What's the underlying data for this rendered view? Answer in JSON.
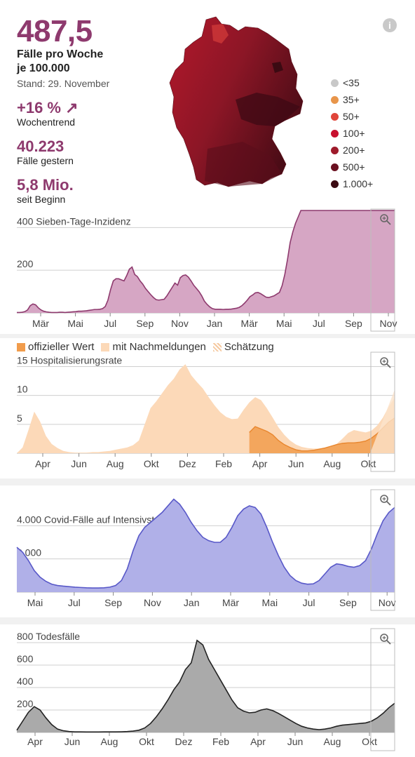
{
  "header": {
    "incidence": "487,5",
    "incidence_label_1": "Fälle pro Woche",
    "incidence_label_2": "je 100.000",
    "stand": "Stand: 29. November",
    "trend_value": "+16 %",
    "trend_arrow": "↗",
    "trend_label": "Wochentrend",
    "cases_yesterday": "40.223",
    "cases_yesterday_label": "Fälle gestern",
    "total": "5,8 Mio.",
    "total_label": "seit Beginn",
    "info_icon": "i"
  },
  "map_legend": [
    {
      "label": "<35",
      "color": "#c8c8c8"
    },
    {
      "label": "35+",
      "color": "#e8954a"
    },
    {
      "label": "50+",
      "color": "#e0453a"
    },
    {
      "label": "100+",
      "color": "#c8102e"
    },
    {
      "label": "200+",
      "color": "#9e1b2b"
    },
    {
      "label": "500+",
      "color": "#6a1020"
    },
    {
      "label": "1.000+",
      "color": "#3b0a12"
    }
  ],
  "hosp_legend": {
    "official": "offizieller Wert",
    "late": "mit Nachmeldungen",
    "estimate": "Schätzung"
  },
  "chart_data": [
    {
      "type": "area",
      "title": "Sieben-Tage-Inzidenz",
      "color": "#8e3a6e",
      "fill": "#d6a6c4",
      "ylim": [
        0,
        480
      ],
      "yticks": [
        200,
        400
      ],
      "xticks": [
        "Mär",
        "Mai",
        "Jul",
        "Sep",
        "Nov",
        "Jan",
        "Mär",
        "Mai",
        "Jul",
        "Sep",
        "Nov"
      ],
      "x": [
        0,
        1,
        2,
        3,
        4,
        5,
        6,
        7,
        8,
        9,
        10,
        11,
        12,
        13,
        14,
        15,
        16,
        17,
        18,
        19,
        20,
        21,
        22,
        23,
        24,
        25,
        26,
        27,
        28,
        29,
        30,
        31,
        32,
        33,
        34,
        35,
        36,
        37,
        38,
        39,
        40,
        41,
        42,
        43,
        44,
        45,
        46,
        47,
        48,
        49,
        50,
        51,
        52,
        53,
        54,
        55,
        56,
        57,
        58,
        59,
        60,
        61,
        62,
        63,
        64,
        65,
        66,
        67,
        68,
        69,
        70,
        71,
        72,
        73,
        74,
        75,
        76,
        77,
        78,
        79,
        80,
        81,
        82,
        83,
        84,
        85,
        86,
        87,
        88,
        89,
        90,
        91,
        92,
        93,
        94,
        95,
        96,
        97,
        98,
        99,
        100,
        101,
        102,
        103,
        104,
        105,
        106,
        107,
        108,
        109,
        110,
        111,
        112,
        113,
        114,
        115,
        116,
        117,
        118,
        119,
        120,
        121,
        122,
        123,
        124,
        125,
        126,
        127,
        128,
        129,
        130,
        131,
        132,
        133,
        134,
        135,
        136,
        137,
        138,
        139,
        140,
        141
      ],
      "values": [
        2,
        2,
        3,
        6,
        14,
        34,
        42,
        38,
        24,
        14,
        8,
        5,
        3,
        2,
        2,
        2,
        3,
        3,
        2,
        3,
        4,
        5,
        6,
        8,
        8,
        9,
        10,
        12,
        14,
        16,
        16,
        17,
        20,
        30,
        60,
        110,
        150,
        160,
        160,
        155,
        150,
        175,
        205,
        215,
        180,
        170,
        150,
        135,
        115,
        100,
        85,
        72,
        62,
        60,
        62,
        64,
        80,
        100,
        120,
        140,
        130,
        165,
        175,
        178,
        168,
        150,
        130,
        115,
        100,
        80,
        55,
        40,
        28,
        20,
        17,
        17,
        17,
        16,
        17,
        17,
        18,
        20,
        22,
        26,
        34,
        46,
        60,
        76,
        84,
        94,
        96,
        90,
        82,
        74,
        72,
        76,
        80,
        88,
        96,
        128,
        180,
        250,
        330,
        380,
        420,
        450,
        480,
        490,
        500,
        500,
        500,
        500,
        500,
        500,
        500,
        500,
        500,
        500,
        500,
        500,
        500,
        500,
        500,
        500,
        500,
        500,
        500,
        500,
        500,
        500,
        500,
        500,
        500,
        500,
        500,
        500,
        500,
        500,
        500,
        500,
        500,
        500
      ]
    },
    {
      "type": "area",
      "title": "Hospitalisierungsrate",
      "ylim": [
        0,
        17
      ],
      "yticks": [
        5,
        10,
        15
      ],
      "xticks": [
        "Apr",
        "Jun",
        "Aug",
        "Okt",
        "Dez",
        "Feb",
        "Apr",
        "Jun",
        "Aug",
        "Okt"
      ],
      "series": [
        {
          "name": "mit Nachmeldungen",
          "color": "#fcd9b8",
          "values": [
            0,
            1,
            4,
            7.2,
            5.5,
            3,
            1.6,
            0.9,
            0.4,
            0.2,
            0.1,
            0.1,
            0.1,
            0.2,
            0.2,
            0.3,
            0.4,
            0.6,
            0.8,
            1,
            1.4,
            2.2,
            5,
            7.8,
            9,
            10.4,
            11.8,
            12.9,
            14.5,
            15.4,
            13.5,
            12.3,
            11.2,
            9.7,
            8.3,
            7.1,
            6.3,
            5.9,
            6,
            7.5,
            8.8,
            9.7,
            9.2,
            7.8,
            6.2,
            4.5,
            3.2,
            2.2,
            1.5,
            1.1,
            0.9,
            0.8,
            0.8,
            0.9,
            1.1,
            1.6,
            2.5,
            3.5,
            4,
            3.8,
            3.6,
            3.9,
            4.8,
            6.2,
            8.1,
            9.6
          ]
        },
        {
          "name": "offizieller Wert",
          "color": "#f19c4c",
          "values": [
            null,
            null,
            null,
            null,
            null,
            null,
            null,
            null,
            null,
            null,
            null,
            null,
            null,
            null,
            null,
            null,
            null,
            null,
            null,
            null,
            null,
            null,
            null,
            null,
            null,
            null,
            null,
            null,
            null,
            null,
            null,
            null,
            null,
            null,
            null,
            null,
            null,
            null,
            null,
            null,
            3.6,
            4.6,
            4.2,
            3.8,
            3.2,
            2.2,
            1.5,
            1,
            0.6,
            0.4,
            0.4,
            0.5,
            0.7,
            0.9,
            1.2,
            1.5,
            1.7,
            1.8,
            1.8,
            1.9,
            2.1,
            2.6,
            3.4,
            4.4,
            5.4,
            6.1
          ]
        }
      ],
      "estimate_label": "Schätzung"
    },
    {
      "type": "area",
      "title": "Covid-Fälle auf Intensivstation",
      "color": "#5858c8",
      "fill": "#b0b0e8",
      "ylim": [
        0,
        6000
      ],
      "yticks": [
        2000,
        4000
      ],
      "xticks": [
        "Mai",
        "Jul",
        "Sep",
        "Nov",
        "Jan",
        "Mär",
        "Mai",
        "Jul",
        "Sep",
        "Nov"
      ],
      "values": [
        2700,
        2400,
        1900,
        1300,
        900,
        650,
        480,
        400,
        360,
        330,
        300,
        280,
        260,
        250,
        250,
        260,
        300,
        400,
        700,
        1400,
        2500,
        3400,
        3900,
        4200,
        4500,
        4800,
        5200,
        5600,
        5300,
        4800,
        4200,
        3700,
        3300,
        3100,
        3000,
        3000,
        3300,
        3900,
        4600,
        5000,
        5200,
        5100,
        4700,
        3900,
        3000,
        2200,
        1500,
        1000,
        700,
        540,
        480,
        500,
        700,
        1100,
        1500,
        1700,
        1650,
        1550,
        1500,
        1600,
        1900,
        2600,
        3500,
        4300,
        4800,
        5100
      ]
    },
    {
      "type": "area",
      "title": "Todesfälle",
      "color": "#222222",
      "fill": "#aaaaaa",
      "ylim": [
        0,
        900
      ],
      "yticks": [
        200,
        400,
        600,
        800
      ],
      "xticks": [
        "Apr",
        "Jun",
        "Aug",
        "Okt",
        "Dez",
        "Feb",
        "Apr",
        "Jun",
        "Aug",
        "Okt"
      ],
      "values": [
        20,
        100,
        180,
        230,
        200,
        130,
        70,
        30,
        15,
        8,
        5,
        5,
        4,
        4,
        4,
        5,
        5,
        5,
        6,
        8,
        12,
        20,
        40,
        80,
        140,
        210,
        290,
        380,
        450,
        560,
        620,
        820,
        780,
        650,
        560,
        470,
        380,
        290,
        220,
        190,
        175,
        180,
        200,
        210,
        195,
        170,
        140,
        110,
        80,
        55,
        40,
        30,
        25,
        30,
        40,
        55,
        65,
        70,
        75,
        80,
        85,
        100,
        130,
        170,
        220,
        260
      ]
    }
  ]
}
